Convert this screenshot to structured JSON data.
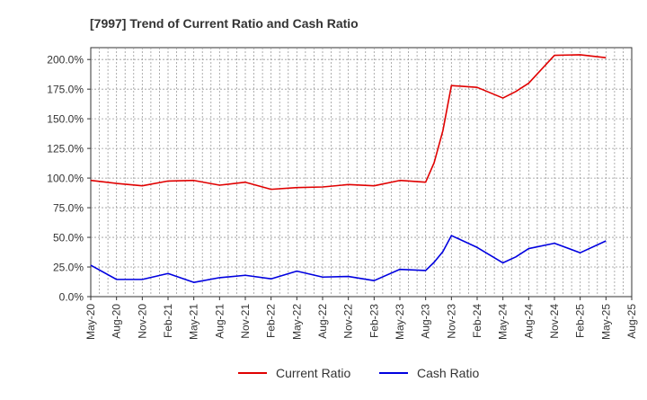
{
  "chart_data": {
    "type": "line",
    "title": "[7997]  Trend of Current Ratio and Cash Ratio",
    "xlabel": "",
    "ylabel": "",
    "ylim": [
      0,
      210
    ],
    "grid": true,
    "legend_position": "bottom-center",
    "y_ticks": [
      0,
      25,
      50,
      75,
      100,
      125,
      150,
      175,
      200
    ],
    "y_tick_labels": [
      "0.0%",
      "25.0%",
      "50.0%",
      "75.0%",
      "100.0%",
      "125.0%",
      "150.0%",
      "175.0%",
      "200.0%"
    ],
    "x_tick_labels": [
      "May-20",
      "Aug-20",
      "Nov-20",
      "Feb-21",
      "May-21",
      "Aug-21",
      "Nov-21",
      "Feb-22",
      "May-22",
      "Aug-22",
      "Nov-22",
      "Feb-23",
      "May-23",
      "Aug-23",
      "Nov-23",
      "Feb-24",
      "May-24",
      "Aug-24",
      "Nov-24",
      "Feb-25",
      "May-25",
      "Aug-25"
    ],
    "series": [
      {
        "name": "Current Ratio",
        "color": "#e00000",
        "x": [
          0,
          1,
          2,
          3,
          4,
          5,
          6,
          7,
          8,
          9,
          10,
          11,
          12,
          13,
          13.33,
          13.67,
          14,
          15,
          16,
          16.5,
          17,
          18,
          19,
          20
        ],
        "values": [
          98,
          95.5,
          93.5,
          97.5,
          98,
          94,
          96.5,
          90.5,
          92,
          92.5,
          94.5,
          93.5,
          98,
          96.5,
          113,
          140,
          178,
          176.5,
          167.5,
          173,
          180,
          203.5,
          204,
          201.5
        ]
      },
      {
        "name": "Cash Ratio",
        "color": "#0000e0",
        "x": [
          0,
          1,
          2,
          3,
          4,
          5,
          6,
          7,
          8,
          9,
          10,
          11,
          12,
          13,
          13.33,
          13.67,
          14,
          15,
          16,
          16.5,
          17,
          18,
          19,
          20
        ],
        "values": [
          26.5,
          14.5,
          14.5,
          19.5,
          12,
          16,
          18,
          15,
          21.5,
          16.5,
          17,
          13.5,
          23,
          22,
          29,
          38,
          51.5,
          41.5,
          28.5,
          33.5,
          40.5,
          45,
          37,
          47
        ]
      }
    ]
  }
}
